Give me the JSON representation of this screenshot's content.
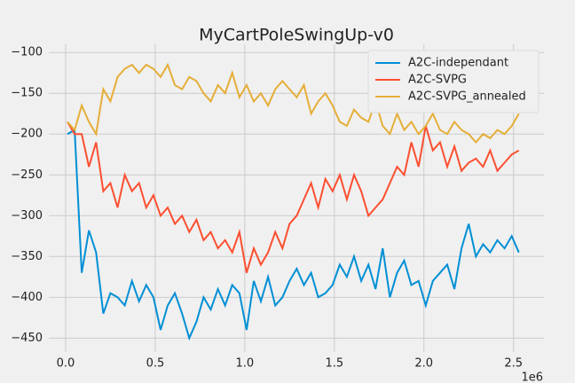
{
  "chart_data": {
    "type": "line",
    "title": "MyCartPoleSwingUp-v0",
    "x": [
      0.01,
      0.05,
      0.09,
      0.13,
      0.17,
      0.21,
      0.25,
      0.29,
      0.33,
      0.37,
      0.41,
      0.45,
      0.49,
      0.53,
      0.57,
      0.61,
      0.65,
      0.69,
      0.73,
      0.77,
      0.81,
      0.85,
      0.89,
      0.93,
      0.97,
      1.01,
      1.05,
      1.09,
      1.13,
      1.17,
      1.21,
      1.25,
      1.29,
      1.33,
      1.37,
      1.41,
      1.45,
      1.49,
      1.53,
      1.57,
      1.61,
      1.65,
      1.69,
      1.73,
      1.77,
      1.81,
      1.85,
      1.89,
      1.93,
      1.97,
      2.01,
      2.05,
      2.09,
      2.13,
      2.17,
      2.21,
      2.25,
      2.29,
      2.33,
      2.37,
      2.41,
      2.45,
      2.49,
      2.53
    ],
    "x_offset_label": "1e6",
    "series": [
      {
        "name": "A2C-independant",
        "color": "#008fd5",
        "values": [
          -200,
          -195,
          -370,
          -318,
          -345,
          -420,
          -395,
          -400,
          -410,
          -380,
          -405,
          -385,
          -400,
          -440,
          -410,
          -395,
          -420,
          -450,
          -430,
          -400,
          -415,
          -390,
          -410,
          -385,
          -395,
          -440,
          -380,
          -405,
          -375,
          -410,
          -400,
          -380,
          -365,
          -385,
          -370,
          -400,
          -395,
          -385,
          -360,
          -375,
          -350,
          -380,
          -360,
          -390,
          -340,
          -400,
          -370,
          -355,
          -385,
          -380,
          -410,
          -380,
          -370,
          -360,
          -390,
          -340,
          -310,
          -350,
          -335,
          -345,
          -330,
          -340,
          -325,
          -345
        ]
      },
      {
        "name": "A2C-SVPG",
        "color": "#fc4f30",
        "values": [
          -185,
          -200,
          -200,
          -240,
          -210,
          -270,
          -260,
          -290,
          -250,
          -270,
          -260,
          -290,
          -275,
          -300,
          -290,
          -310,
          -300,
          -320,
          -305,
          -330,
          -320,
          -340,
          -330,
          -345,
          -320,
          -370,
          -340,
          -360,
          -345,
          -320,
          -340,
          -310,
          -300,
          -280,
          -260,
          -290,
          -255,
          -270,
          -250,
          -280,
          -250,
          -270,
          -300,
          -290,
          -280,
          -260,
          -240,
          -250,
          -210,
          -240,
          -190,
          -220,
          -210,
          -240,
          -215,
          -245,
          -235,
          -230,
          -240,
          -220,
          -245,
          -235,
          -225,
          -220
        ]
      },
      {
        "name": "A2C-SVPG_annealed",
        "color": "#e5ae38",
        "values": [
          -185,
          -195,
          -165,
          -185,
          -200,
          -145,
          -160,
          -130,
          -120,
          -115,
          -125,
          -115,
          -120,
          -130,
          -115,
          -140,
          -145,
          -130,
          -135,
          -150,
          -160,
          -140,
          -150,
          -125,
          -155,
          -140,
          -160,
          -150,
          -165,
          -145,
          -135,
          -145,
          -155,
          -140,
          -175,
          -160,
          -150,
          -165,
          -185,
          -190,
          -170,
          -180,
          -185,
          -160,
          -190,
          -200,
          -175,
          -195,
          -185,
          -200,
          -190,
          -175,
          -195,
          -200,
          -185,
          -195,
          -200,
          -210,
          -200,
          -205,
          -195,
          -200,
          -190,
          -175
        ]
      }
    ],
    "xlim": [
      -0.094,
      2.67
    ],
    "ylim": [
      -467,
      -90
    ],
    "xticks": [
      {
        "value": 0,
        "label": "0.0"
      },
      {
        "value": 0.5,
        "label": "0.5"
      },
      {
        "value": 1,
        "label": "1.0"
      },
      {
        "value": 1.5,
        "label": "1.5"
      },
      {
        "value": 2,
        "label": "2.0"
      },
      {
        "value": 2.5,
        "label": "2.5"
      }
    ],
    "yticks": [
      {
        "value": -100,
        "label": "−100"
      },
      {
        "value": -150,
        "label": "−150"
      },
      {
        "value": -200,
        "label": "−200"
      },
      {
        "value": -250,
        "label": "−250"
      },
      {
        "value": -300,
        "label": "−300"
      },
      {
        "value": -350,
        "label": "−350"
      },
      {
        "value": -400,
        "label": "−400"
      },
      {
        "value": -450,
        "label": "−450"
      }
    ],
    "grid": true,
    "legend": "upper right"
  }
}
